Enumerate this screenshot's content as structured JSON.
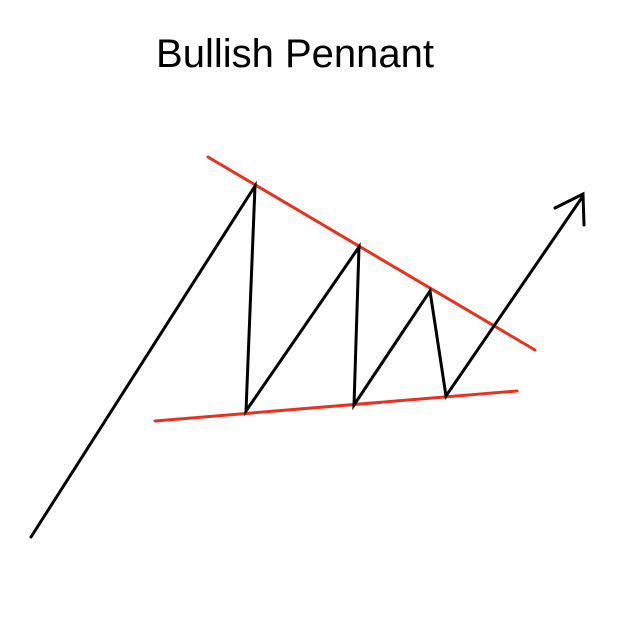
{
  "title": "Bullish Pennant",
  "colors": {
    "price_path": "#000000",
    "trendlines": "#e8321e",
    "background": "#ffffff"
  },
  "elements": {
    "price_path": "zigzag-line",
    "upper_trendline": "descending-resistance-line",
    "lower_trendline": "ascending-support-line",
    "breakout": "arrowhead-up-right"
  }
}
